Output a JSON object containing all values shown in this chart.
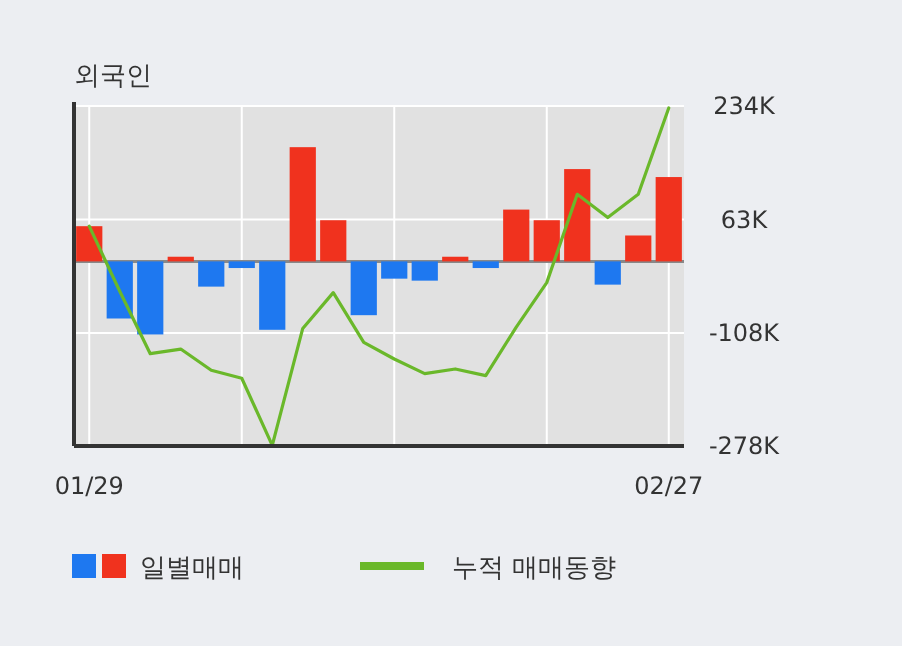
{
  "chart_data": {
    "type": "bar",
    "title": "외국인",
    "categories": [
      "01/29",
      null,
      null,
      null,
      null,
      null,
      null,
      null,
      null,
      null,
      null,
      null,
      null,
      null,
      null,
      null,
      null,
      null,
      null,
      "02/27"
    ],
    "series": [
      {
        "name": "일별매매",
        "values": [
          53,
          -86,
          -110,
          7,
          -38,
          -10,
          -103,
          172,
          62,
          -81,
          -26,
          -29,
          7,
          -10,
          78,
          62,
          139,
          -35,
          39,
          127
        ],
        "colors": [
          "#f0321e",
          "#1e78f0",
          "#1e78f0",
          "#f0321e",
          "#1e78f0",
          "#1e78f0",
          "#1e78f0",
          "#f0321e",
          "#f0321e",
          "#1e78f0",
          "#1e78f0",
          "#1e78f0",
          "#f0321e",
          "#1e78f0",
          "#f0321e",
          "#f0321e",
          "#f0321e",
          "#1e78f0",
          "#f0321e",
          "#f0321e"
        ]
      },
      {
        "name": "누적 매매동향",
        "type": "line",
        "color": "#6ab82a",
        "values": [
          53,
          -45,
          -139,
          -132,
          -164,
          -176,
          -277,
          -101,
          -47,
          -122,
          -147,
          -169,
          -162,
          -172,
          -99,
          -32,
          101,
          66,
          101,
          231
        ]
      }
    ],
    "ylim": [
      -278,
      234
    ],
    "yticks": [
      {
        "value": 234,
        "label": "234K"
      },
      {
        "value": 63,
        "label": "63K"
      },
      {
        "value": -108,
        "label": "-108K"
      },
      {
        "value": -278,
        "label": "-278K"
      }
    ],
    "grid": true,
    "legend": "bottom"
  }
}
